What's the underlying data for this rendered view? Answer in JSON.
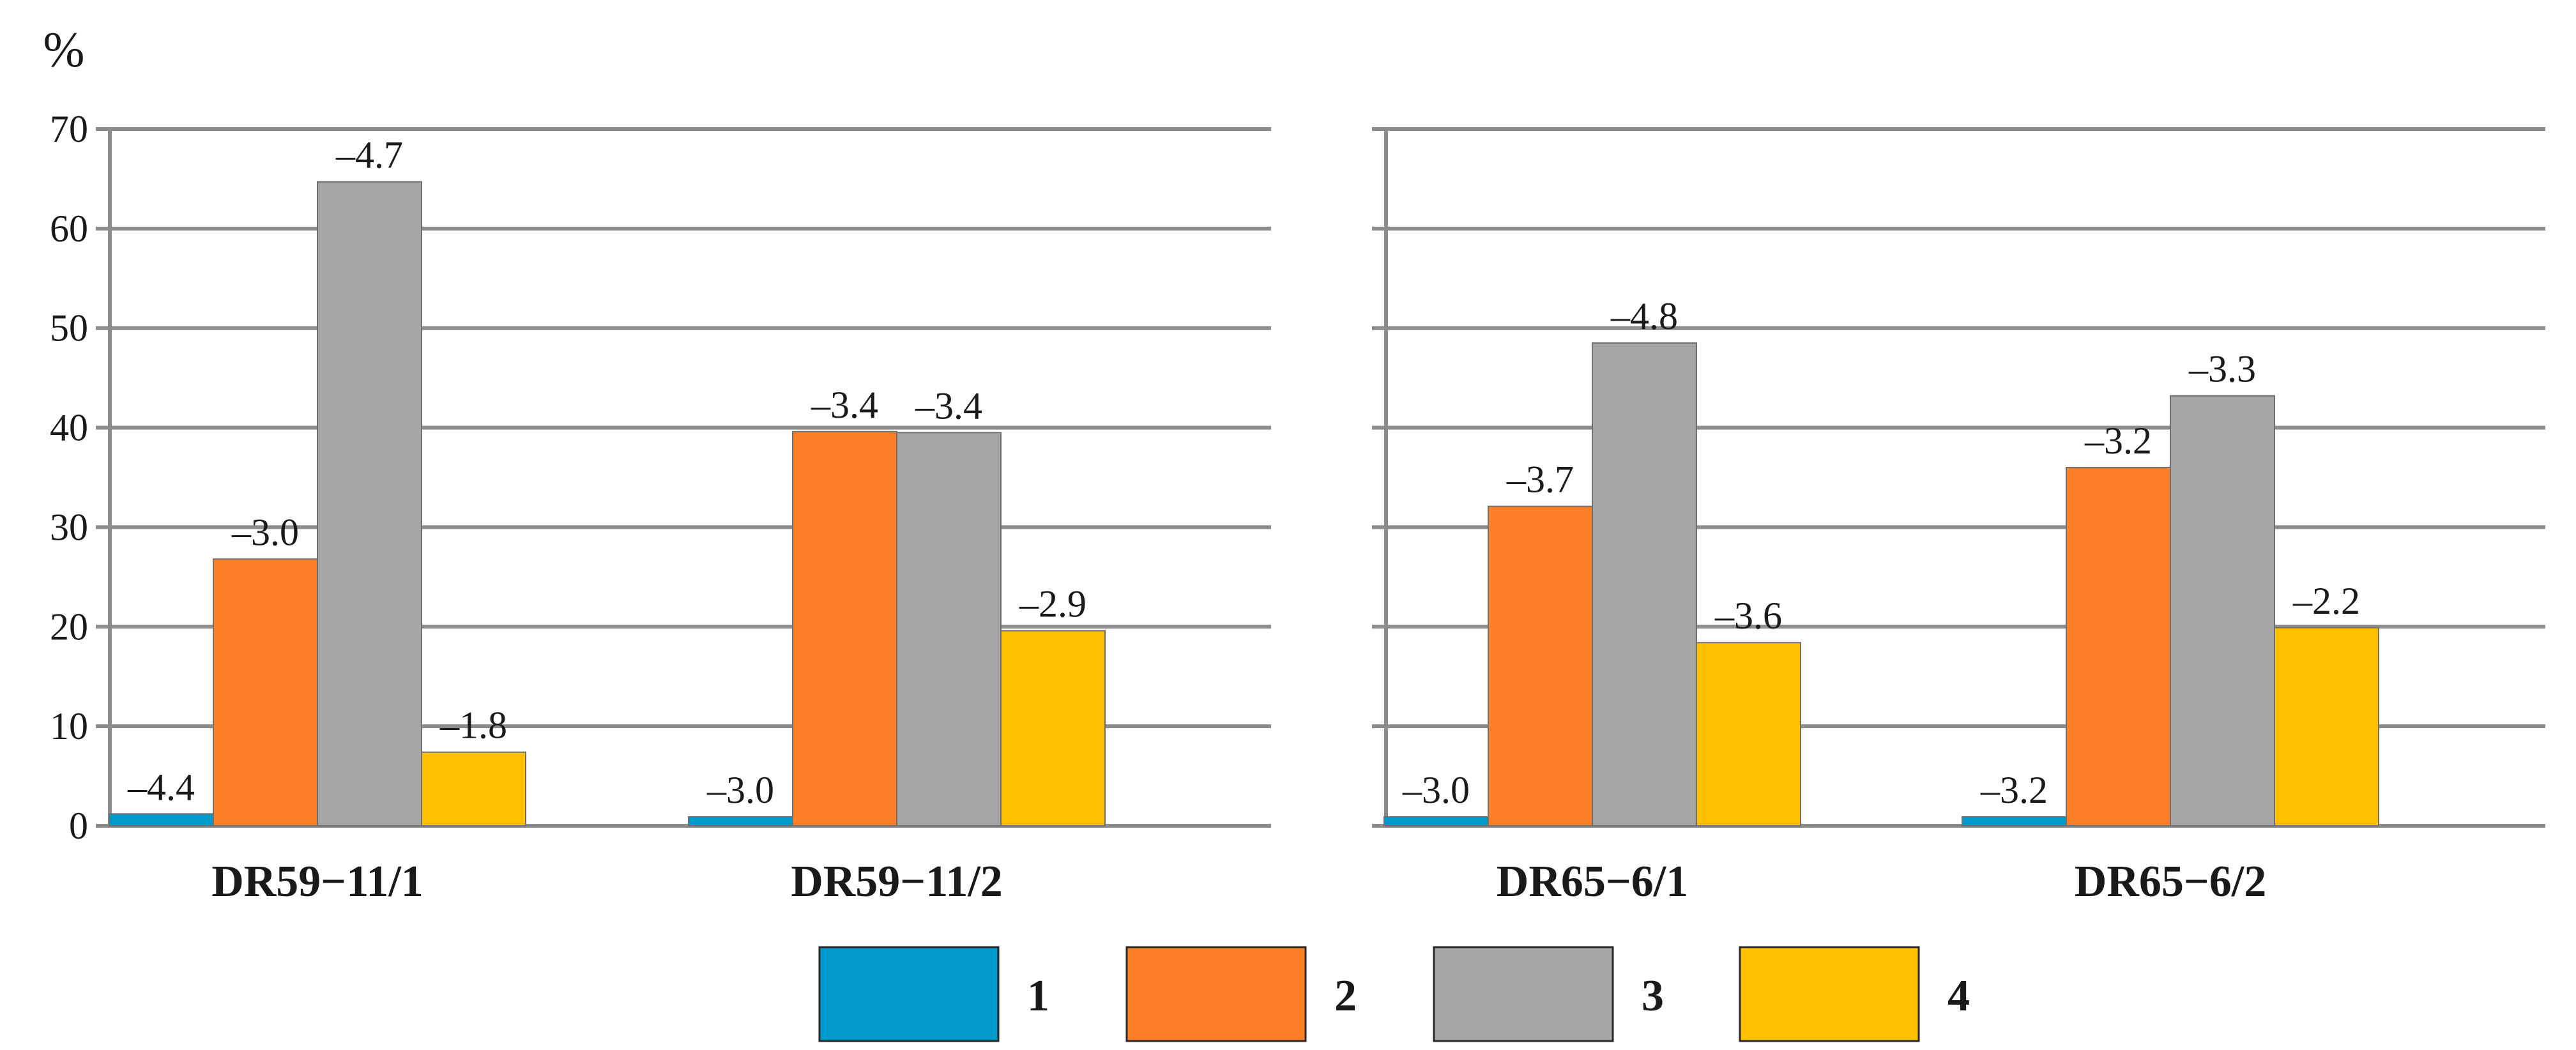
{
  "chart_data": {
    "type": "bar",
    "unit_label": "%",
    "ylim": [
      0,
      70
    ],
    "yticks": [
      "0",
      "10",
      "20",
      "30",
      "40",
      "50",
      "60",
      "70"
    ],
    "series_colors": [
      "#0099cc",
      "#ff7f27",
      "#a6a6a6",
      "#ffc000"
    ],
    "legend": [
      "1",
      "2",
      "3",
      "4"
    ],
    "panels": [
      {
        "categories": [
          "DR59−11/1",
          "DR59−11/2"
        ],
        "series": [
          {
            "name": "1",
            "values": [
              1.2,
              0.9
            ],
            "labels": [
              "–4.4",
              "–3.0"
            ]
          },
          {
            "name": "2",
            "values": [
              26.8,
              39.6
            ],
            "labels": [
              "–3.0",
              "–3.4"
            ]
          },
          {
            "name": "3",
            "values": [
              64.7,
              39.5
            ],
            "labels": [
              "–4.7",
              "–3.4"
            ]
          },
          {
            "name": "4",
            "values": [
              7.4,
              19.6
            ],
            "labels": [
              "–1.8",
              "–2.9"
            ]
          }
        ]
      },
      {
        "categories": [
          "DR65−6/1",
          "DR65−6/2"
        ],
        "series": [
          {
            "name": "1",
            "values": [
              0.9,
              0.9
            ],
            "labels": [
              "–3.0",
              "–3.2"
            ]
          },
          {
            "name": "2",
            "values": [
              32.1,
              36.0
            ],
            "labels": [
              "–3.7",
              "–3.2"
            ]
          },
          {
            "name": "3",
            "values": [
              48.5,
              43.2
            ],
            "labels": [
              "–4.8",
              "–3.3"
            ]
          },
          {
            "name": "4",
            "values": [
              18.4,
              19.9
            ],
            "labels": [
              "–3.6",
              "–2.2"
            ]
          }
        ]
      }
    ]
  }
}
